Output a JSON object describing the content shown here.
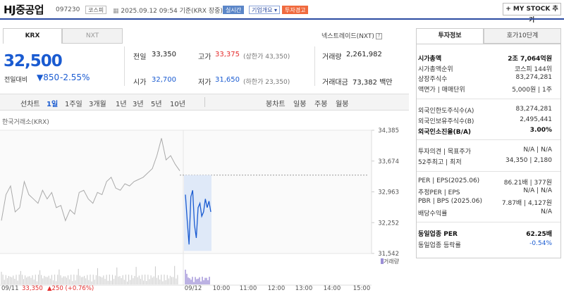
{
  "header": {
    "name": "HJ중공업",
    "code": "097230",
    "market_tag": "코스피",
    "datetime": "2025.09.12 09:54 기준(KRX 장중)",
    "realtime_btn": "실시간",
    "company_btn": "기업개요 ▾",
    "warning_tag": "투자경고",
    "mystock_btn": "+ MY STOCK 추가"
  },
  "tabs": {
    "krx": "KRX",
    "nxt": "NXT",
    "nxt_link": "넥스트레이드(NXT)"
  },
  "quote": {
    "price": "32,500",
    "change_label": "전일대비",
    "change_value": "▼850",
    "change_pct": "-2.55%",
    "prev_label": "전일",
    "prev": "33,350",
    "open_label": "시가",
    "open": "32,700",
    "high_label": "고가",
    "high": "33,375",
    "upper_limit": "(상한가 43,350)",
    "low_label": "저가",
    "low": "31,650",
    "lower_limit": "(하한가 23,350)",
    "volume_label": "거래량",
    "volume": "2,261,982",
    "amount_label": "거래대금",
    "amount": "73,382",
    "amount_unit": "백만"
  },
  "periods": {
    "line_chart": "선차트",
    "items": [
      "1일",
      "1주일",
      "3개월",
      "1년",
      "3년",
      "5년",
      "10년"
    ],
    "candle_chart": "봉차트",
    "candle_items": [
      "일봉",
      "주봉",
      "월봉"
    ]
  },
  "chart": {
    "source": "한국거래소(KRX)",
    "y_ticks": [
      "34,385",
      "33,674",
      "32,963",
      "32,252",
      "31,542"
    ],
    "volume_label": "거래량",
    "prev_date": "09/11",
    "prev_close": "33,350",
    "prev_change": "▲250 (+0.76%)",
    "x_ticks": [
      "09/12",
      "10:00",
      "11:00",
      "12:00",
      "13:00",
      "14:00",
      "15:00"
    ]
  },
  "chart_data": {
    "type": "line",
    "ylim": [
      31542,
      34385
    ],
    "prev_day_close_ref": 33350,
    "series": [
      {
        "values": [
          32300,
          32900,
          33100,
          32500,
          32600,
          33200,
          32900,
          32800,
          32700,
          33000,
          32800,
          32950,
          32600,
          32650,
          32300,
          32550,
          32450,
          32950,
          33000,
          32800,
          32700,
          32950,
          32900,
          33200,
          33300,
          33050,
          33000,
          33150,
          33100,
          33200,
          33250,
          33300,
          33400,
          33500,
          33800,
          34200,
          33700,
          33800,
          33600,
          33450
        ]
      },
      {
        "values": [
          32900,
          32300,
          31750,
          32850,
          33000,
          32200,
          31900,
          32600,
          32700,
          32400,
          32500,
          32800,
          32600,
          32750,
          32500
        ]
      }
    ]
  },
  "invest_info": {
    "tab1": "투자정보",
    "tab2": "호가10단계",
    "rows": [
      {
        "l": "시가총액",
        "r": "2조 7,064억원",
        "b": true
      },
      {
        "l": "시가총액순위",
        "r": "코스피 144위"
      },
      {
        "l": "상장주식수",
        "r": "83,274,281"
      },
      {
        "l": "액면가 | 매매단위",
        "r": "5,000원 | 1주"
      },
      {
        "l": "외국인한도주식수(A)",
        "r": "83,274,281"
      },
      {
        "l": "외국인보유주식수(B)",
        "r": "2,495,441"
      },
      {
        "l": "외국인소진율(B/A)",
        "r": "3.00%",
        "b": true
      },
      {
        "l": "투자의견 | 목표주가",
        "r": "N/A | N/A"
      },
      {
        "l": "52주최고 | 최저",
        "r": "34,350 | 2,180"
      },
      {
        "l": "PER | EPS(2025.06)",
        "r": "86.21배 | 377원"
      },
      {
        "l": "추정PER | EPS",
        "r": "N/A | N/A"
      },
      {
        "l": "PBR | BPS (2025.06)",
        "r": "7.87배 | 4,127원"
      },
      {
        "l": "배당수익률",
        "r": "N/A"
      },
      {
        "l": "동일업종 PER",
        "r": "62.25배",
        "b": true
      },
      {
        "l": "동일업종 등락률",
        "r": "-0.54%"
      }
    ]
  },
  "colors": {
    "up": "#e52d2d",
    "down": "#1a5bd1",
    "accent": "#2b4ba1"
  }
}
